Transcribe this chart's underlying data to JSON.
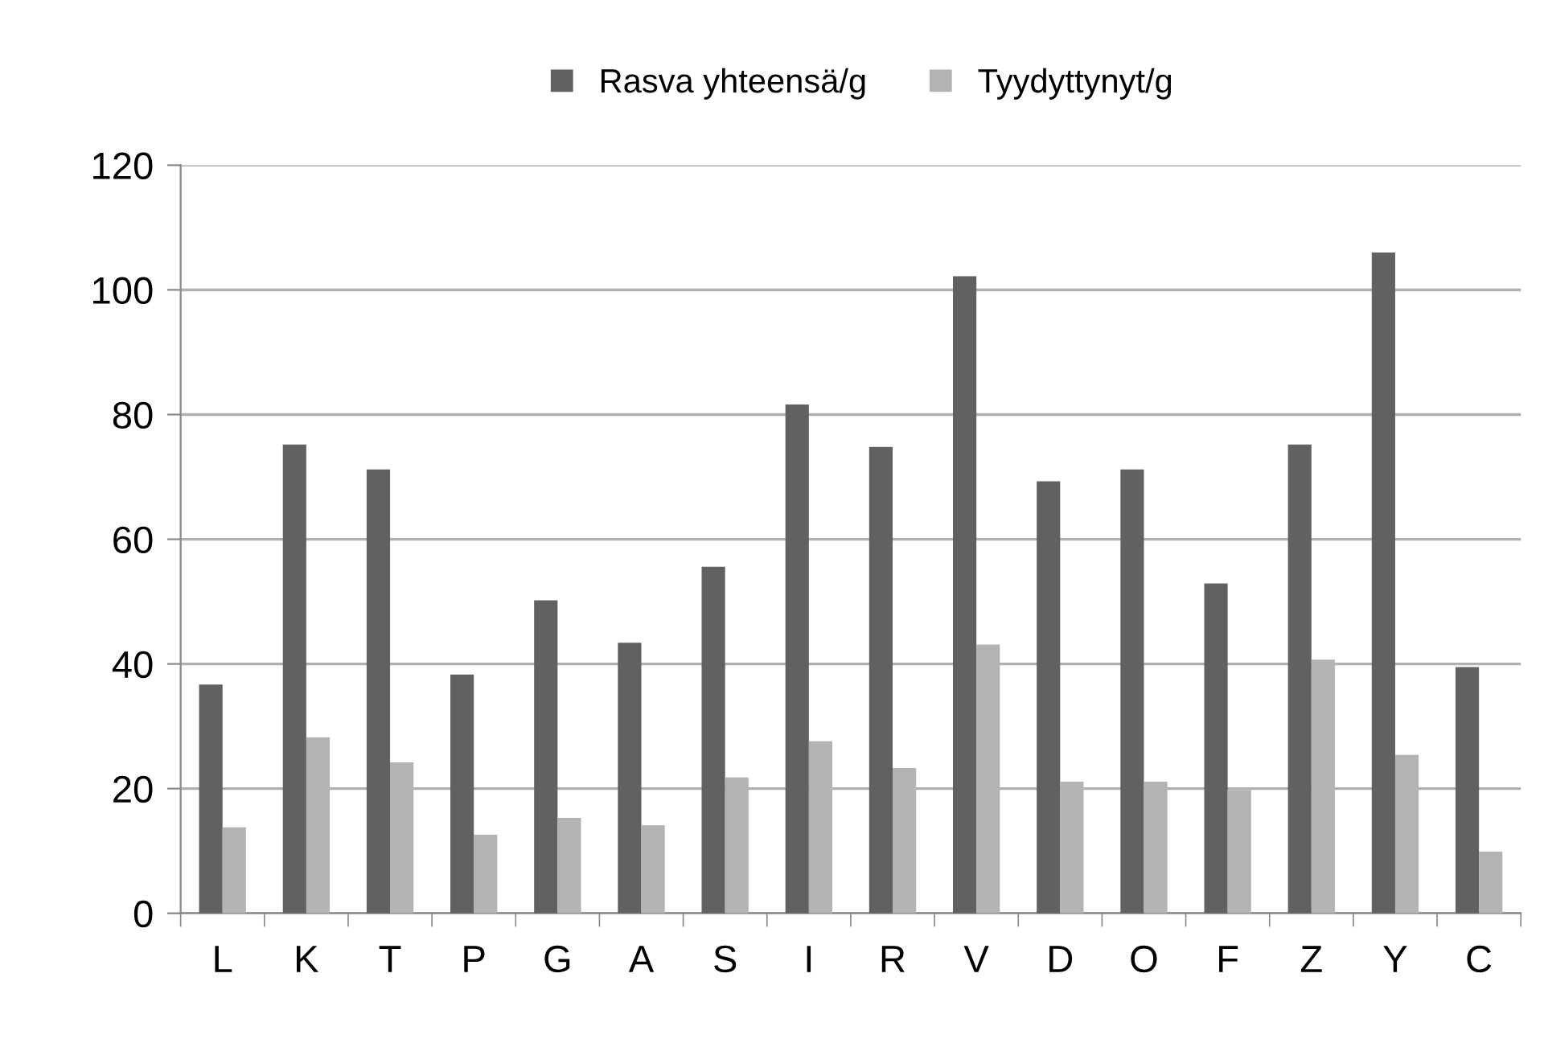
{
  "chart_data": {
    "type": "bar",
    "categories": [
      "L",
      "K",
      "T",
      "P",
      "G",
      "A",
      "S",
      "I",
      "R",
      "V",
      "D",
      "O",
      "F",
      "Z",
      "Y",
      "C"
    ],
    "series": [
      {
        "name": "Rasva yhteensä/g",
        "color": "#616161",
        "values": [
          36.7,
          75.2,
          71.2,
          38.3,
          50.2,
          43.4,
          55.6,
          81.6,
          74.8,
          102.2,
          69.3,
          71.2,
          52.9,
          75.2,
          106.0,
          39.5
        ]
      },
      {
        "name": "Tyydyttynyt/g",
        "color": "#b3b3b3",
        "values": [
          13.8,
          28.2,
          24.2,
          12.6,
          15.3,
          14.1,
          21.8,
          27.6,
          23.3,
          43.1,
          21.1,
          21.1,
          19.8,
          40.7,
          25.4,
          9.9
        ]
      }
    ],
    "ylim": [
      0,
      120
    ],
    "yticks": [
      0,
      20,
      40,
      60,
      80,
      100,
      120
    ],
    "grid": "y",
    "legend": "top"
  }
}
